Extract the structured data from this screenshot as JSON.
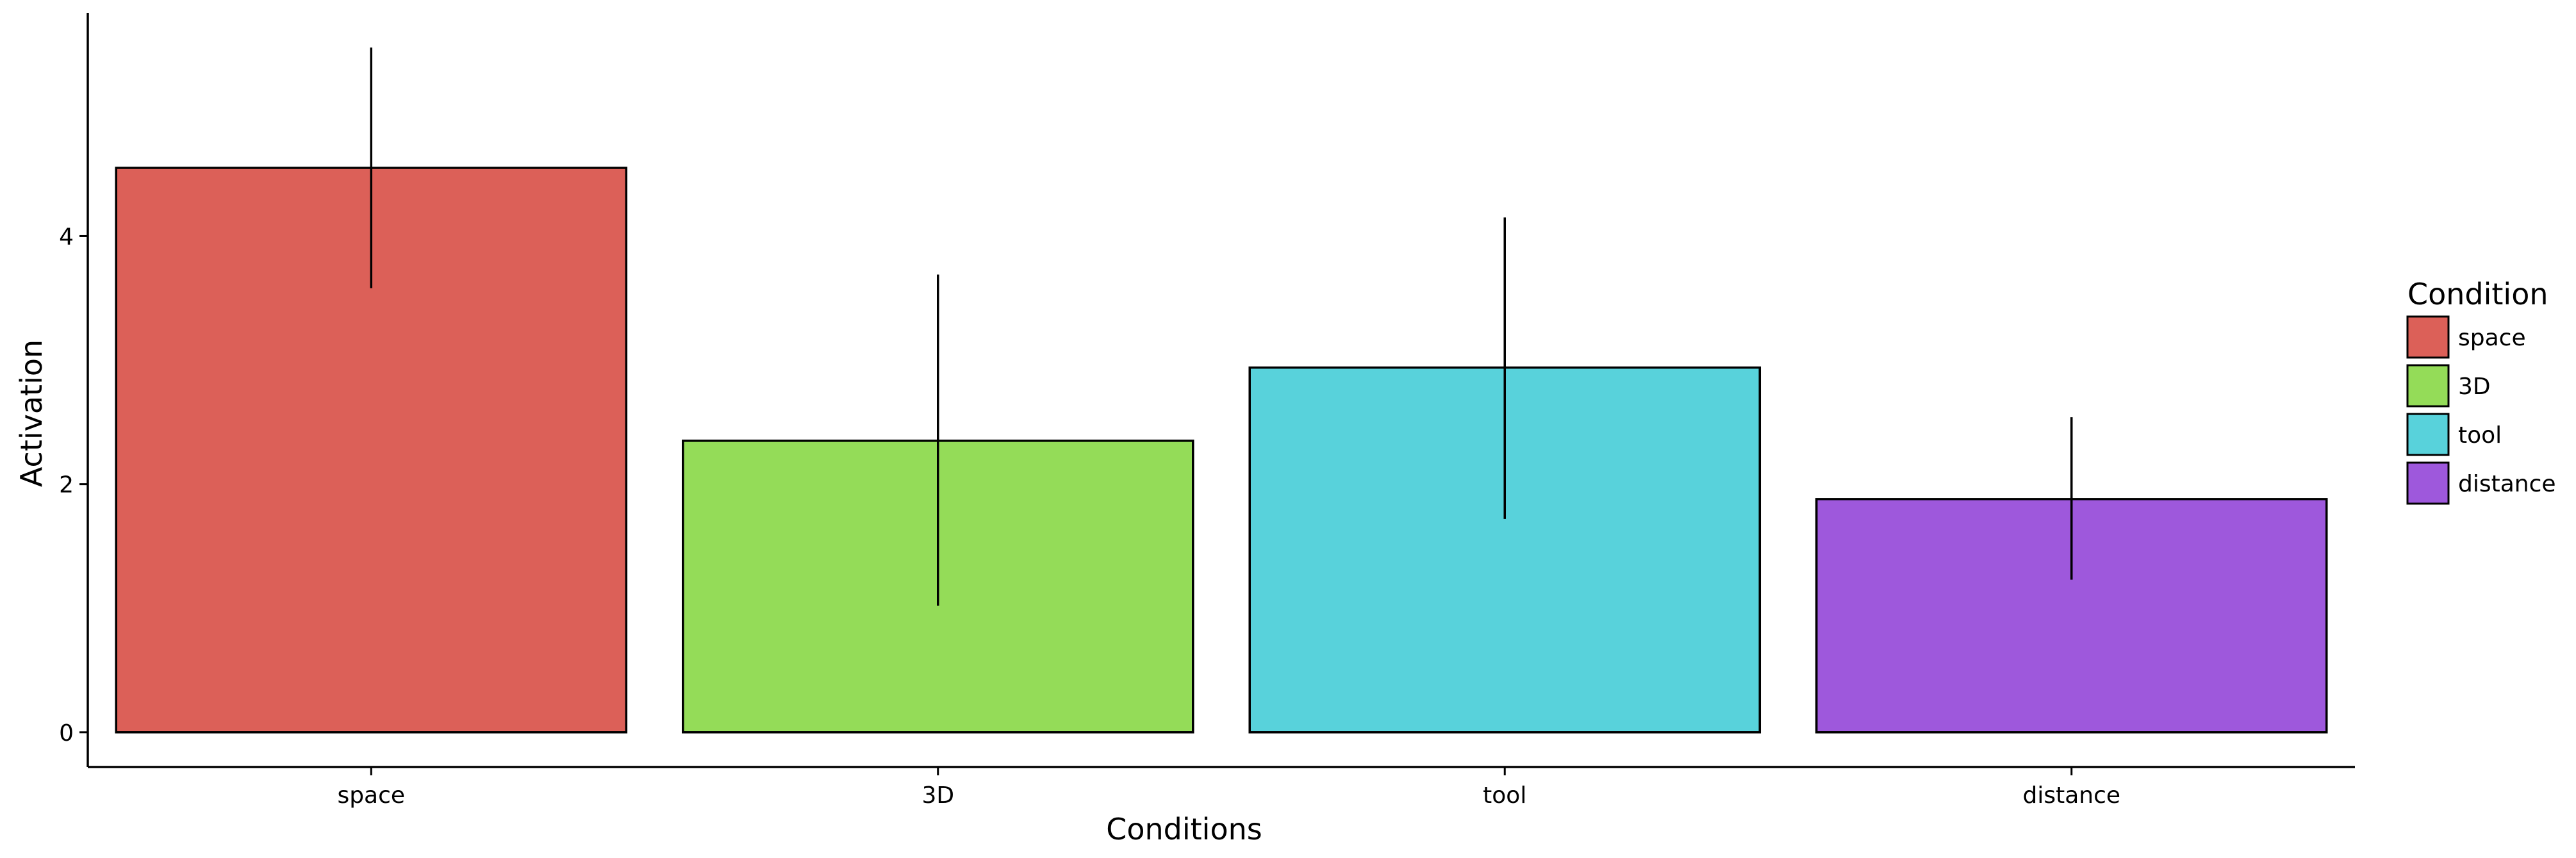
{
  "chart_data": {
    "type": "bar",
    "title": "",
    "xlabel": "Conditions",
    "ylabel": "Activation",
    "categories": [
      "space",
      "3D",
      "tool",
      "distance"
    ],
    "values": [
      4.55,
      2.35,
      2.94,
      1.88
    ],
    "error_low": [
      3.58,
      1.02,
      1.72,
      1.23
    ],
    "error_high": [
      5.52,
      3.69,
      4.15,
      2.54
    ],
    "colors": [
      "#dc6058",
      "#94dc58",
      "#58d2db",
      "#9e58dc"
    ],
    "yticks": [
      0,
      2,
      4
    ],
    "ylim": [
      -0.28,
      5.8
    ],
    "grid": false,
    "legend": {
      "title": "Condition",
      "position": "right",
      "entries": [
        "space",
        "3D",
        "tool",
        "distance"
      ]
    }
  }
}
